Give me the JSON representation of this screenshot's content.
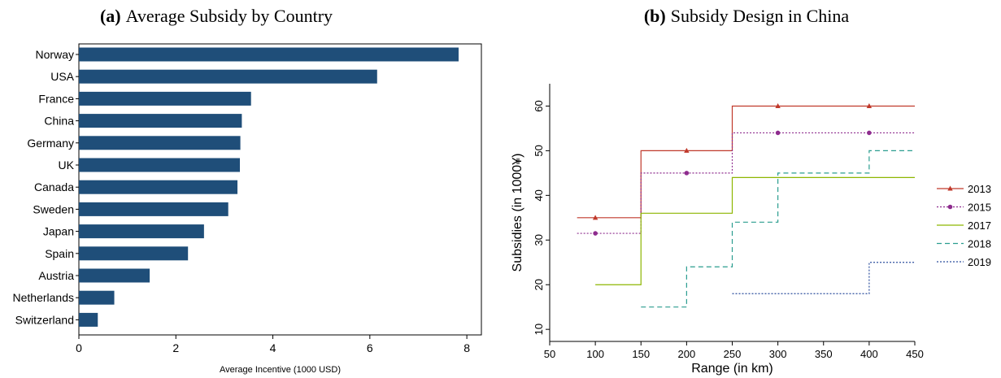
{
  "chart_data": [
    {
      "type": "bar",
      "orientation": "horizontal",
      "title_prefix": "(a)",
      "title": "Average Subsidy by Country",
      "xlabel": "Average Incentive (1000 USD)",
      "ylabel": "",
      "xlim": [
        0,
        8.3
      ],
      "xticks": [
        0,
        2,
        4,
        6,
        8
      ],
      "grid": false,
      "bar_color": "#1f4e79",
      "categories": [
        "Norway",
        "USA",
        "France",
        "China",
        "Germany",
        "UK",
        "Canada",
        "Sweden",
        "Japan",
        "Spain",
        "Austria",
        "Netherlands",
        "Switzerland"
      ],
      "values": [
        7.83,
        6.15,
        3.55,
        3.36,
        3.33,
        3.32,
        3.27,
        3.08,
        2.58,
        2.25,
        1.46,
        0.73,
        0.39
      ]
    },
    {
      "type": "line",
      "step": true,
      "title_prefix": "(b)",
      "title": "Subsidy Design in China",
      "xlabel": "Range (in km)",
      "ylabel": "Subsidies (in 1000¥)",
      "xlim": [
        50,
        450
      ],
      "ylim": [
        10,
        65
      ],
      "xticks": [
        50,
        100,
        150,
        200,
        250,
        300,
        350,
        400,
        450
      ],
      "yticks": [
        10,
        20,
        30,
        40,
        50,
        60
      ],
      "grid": false,
      "legend_position": "right",
      "series": [
        {
          "name": "2013",
          "color": "#c0392b",
          "dash": "solid",
          "marker": "triangle",
          "steps": [
            [
              80,
              150,
              35
            ],
            [
              150,
              250,
              50
            ],
            [
              250,
              450,
              60
            ]
          ],
          "markers": [
            [
              100,
              35
            ],
            [
              200,
              50
            ],
            [
              300,
              60
            ],
            [
              400,
              60
            ]
          ]
        },
        {
          "name": "2015",
          "color": "#8e2c8e",
          "dash": "dotted",
          "marker": "circle",
          "steps": [
            [
              80,
              150,
              31.5
            ],
            [
              150,
              250,
              45
            ],
            [
              250,
              450,
              54
            ]
          ],
          "markers": [
            [
              100,
              31.5
            ],
            [
              200,
              45
            ],
            [
              300,
              54
            ],
            [
              400,
              54
            ]
          ]
        },
        {
          "name": "2017",
          "color": "#8db600",
          "dash": "solid",
          "marker": "none",
          "steps": [
            [
              100,
              150,
              20
            ],
            [
              150,
              250,
              36
            ],
            [
              250,
              450,
              44
            ]
          ],
          "markers": []
        },
        {
          "name": "2018",
          "color": "#2a9d8f",
          "dash": "dashed",
          "marker": "none",
          "steps": [
            [
              150,
              200,
              15
            ],
            [
              200,
              250,
              24
            ],
            [
              250,
              300,
              34
            ],
            [
              300,
              400,
              45
            ],
            [
              400,
              450,
              50
            ]
          ],
          "markers": []
        },
        {
          "name": "2019",
          "color": "#2c4f9e",
          "dash": "dotted",
          "marker": "none",
          "steps": [
            [
              250,
              400,
              18
            ],
            [
              400,
              450,
              25
            ]
          ],
          "markers": []
        }
      ]
    }
  ]
}
